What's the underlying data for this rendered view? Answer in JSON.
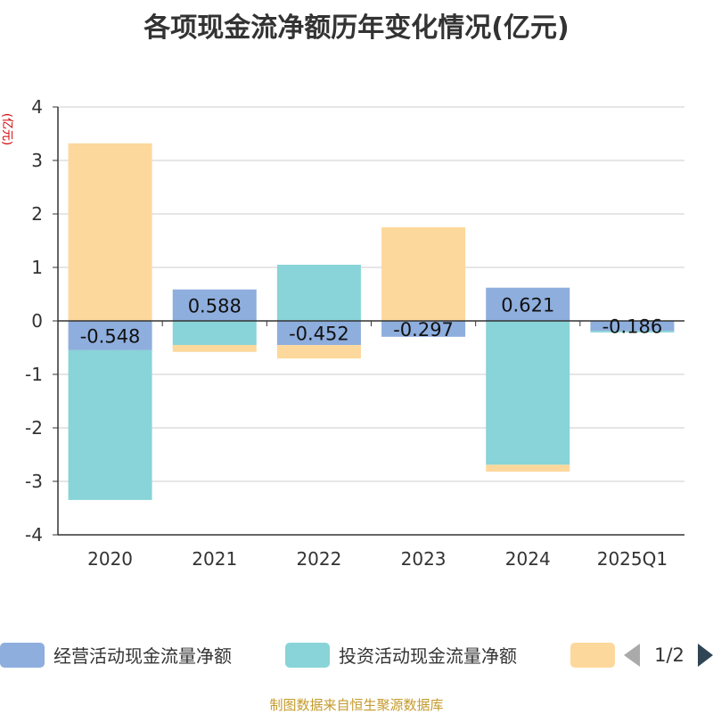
{
  "title": "各项现金流净额历年变化情况(亿元)",
  "source": "制图数据来自恒生聚源数据库",
  "legend_pager": "1/2",
  "chart_data": {
    "type": "bar",
    "stacked": true,
    "categories": [
      "2020",
      "2021",
      "2022",
      "2023",
      "2024",
      "2025Q1"
    ],
    "ylabel": "(亿元)",
    "ylim": [
      -4,
      4
    ],
    "yticks": [
      4,
      3,
      2,
      1,
      0,
      -1,
      -2,
      -3,
      -4
    ],
    "grid": true,
    "legend_position": "bottom",
    "series": [
      {
        "name": "经营活动现金流量净额",
        "color": "#8eaedd",
        "values": [
          -0.548,
          0.588,
          -0.452,
          -0.297,
          0.621,
          -0.186
        ],
        "labels": [
          "-0.548",
          "0.588",
          "-0.452",
          "-0.297",
          "0.621",
          "-0.186"
        ]
      },
      {
        "name": "投资活动现金流量净额",
        "color": "#88d4d8",
        "values": [
          -2.8,
          -0.45,
          1.05,
          0.0,
          -2.69,
          -0.03
        ]
      },
      {
        "name": "",
        "color": "#fdd89c",
        "values": [
          3.32,
          -0.13,
          -0.25,
          1.75,
          -0.13,
          0.0
        ]
      }
    ]
  }
}
